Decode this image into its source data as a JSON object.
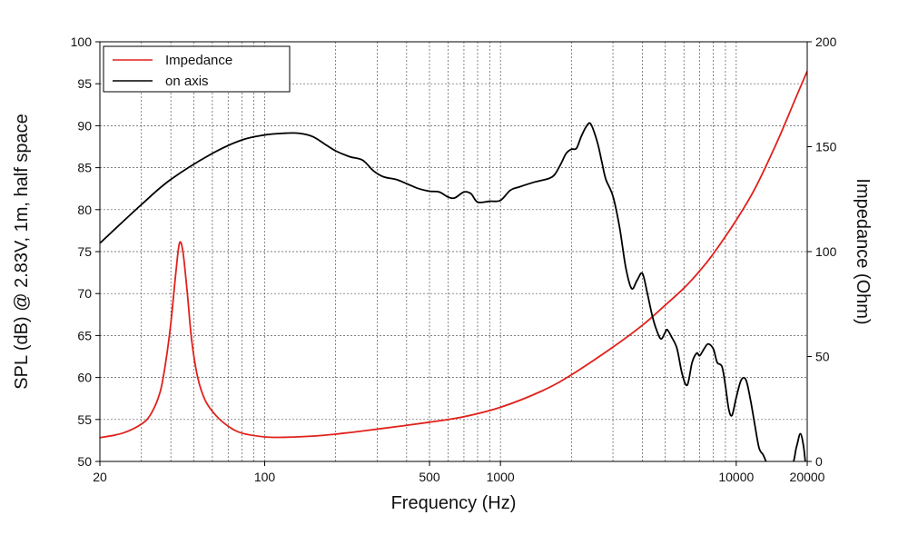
{
  "chart_data": {
    "type": "line",
    "xlabel": "Frequency (Hz)",
    "ylabel_left": "SPL (dB) @ 2.83V, 1m, half space",
    "ylabel_right": "Impedance (Ohm)",
    "xscale": "log",
    "xlim": [
      20,
      20000
    ],
    "ylim_left": [
      50,
      100
    ],
    "ylim_right": [
      0,
      200
    ],
    "x_ticks": [
      20,
      100,
      500,
      1000,
      10000,
      20000
    ],
    "x_tick_labels": [
      "20",
      "100",
      "500",
      "1000",
      "10000",
      "20000"
    ],
    "y_left_ticks": [
      50,
      55,
      60,
      65,
      70,
      75,
      80,
      85,
      90,
      95,
      100
    ],
    "y_left_tick_labels": [
      "50",
      "55",
      "60",
      "65",
      "70",
      "75",
      "80",
      "85",
      "90",
      "95",
      "100"
    ],
    "y_right_ticks": [
      0,
      50,
      100,
      150,
      200
    ],
    "y_right_tick_labels": [
      "0",
      "50",
      "100",
      "150",
      "200"
    ],
    "grid": true,
    "legend_position": "top-left",
    "series": [
      {
        "name": "Impedance",
        "axis": "right",
        "color": "#e0211b",
        "points": [
          [
            20,
            11.3
          ],
          [
            25,
            13.5
          ],
          [
            30,
            17.8
          ],
          [
            33,
            22.8
          ],
          [
            36,
            33
          ],
          [
            38,
            47
          ],
          [
            40,
            66
          ],
          [
            42,
            90
          ],
          [
            43.5,
            104
          ],
          [
            45,
            100
          ],
          [
            47,
            80
          ],
          [
            49,
            58
          ],
          [
            52,
            40
          ],
          [
            56,
            29
          ],
          [
            62,
            22
          ],
          [
            70,
            16.8
          ],
          [
            80,
            13.5
          ],
          [
            100,
            11.7
          ],
          [
            120,
            11.5
          ],
          [
            150,
            11.9
          ],
          [
            200,
            13
          ],
          [
            300,
            15.4
          ],
          [
            500,
            18.7
          ],
          [
            700,
            21.3
          ],
          [
            1000,
            25.8
          ],
          [
            1500,
            33.6
          ],
          [
            2000,
            41.3
          ],
          [
            3000,
            54.5
          ],
          [
            4000,
            64.9
          ],
          [
            5000,
            74.5
          ],
          [
            6000,
            82.6
          ],
          [
            7000,
            90.8
          ],
          [
            8000,
            99
          ],
          [
            10000,
            115
          ],
          [
            12000,
            130
          ],
          [
            15000,
            153
          ],
          [
            18000,
            174
          ],
          [
            20000,
            186
          ]
        ]
      },
      {
        "name": "on axis",
        "axis": "left",
        "color": "#000000",
        "points": [
          [
            20,
            76
          ],
          [
            30,
            80.6
          ],
          [
            40,
            83.6
          ],
          [
            60,
            86.7
          ],
          [
            80,
            88.3
          ],
          [
            100,
            88.9
          ],
          [
            120,
            89.1
          ],
          [
            140,
            89.1
          ],
          [
            160,
            88.7
          ],
          [
            180,
            87.8
          ],
          [
            200,
            87
          ],
          [
            230,
            86.3
          ],
          [
            260,
            85.9
          ],
          [
            290,
            84.6
          ],
          [
            320,
            83.9
          ],
          [
            360,
            83.6
          ],
          [
            400,
            83.1
          ],
          [
            450,
            82.5
          ],
          [
            500,
            82.2
          ],
          [
            550,
            82.1
          ],
          [
            600,
            81.5
          ],
          [
            640,
            81.4
          ],
          [
            700,
            82.1
          ],
          [
            750,
            81.9
          ],
          [
            800,
            80.9
          ],
          [
            900,
            81
          ],
          [
            1000,
            81.1
          ],
          [
            1100,
            82.3
          ],
          [
            1200,
            82.7
          ],
          [
            1400,
            83.3
          ],
          [
            1600,
            83.7
          ],
          [
            1700,
            84.2
          ],
          [
            1800,
            85.4
          ],
          [
            1900,
            86.7
          ],
          [
            2000,
            87.2
          ],
          [
            2100,
            87.3
          ],
          [
            2200,
            88.7
          ],
          [
            2300,
            89.8
          ],
          [
            2400,
            90.3
          ],
          [
            2500,
            89.2
          ],
          [
            2600,
            87.6
          ],
          [
            2700,
            85.5
          ],
          [
            2800,
            83.6
          ],
          [
            3000,
            81.6
          ],
          [
            3200,
            77.9
          ],
          [
            3400,
            73.1
          ],
          [
            3600,
            70.6
          ],
          [
            3800,
            71.6
          ],
          [
            4000,
            72.4
          ],
          [
            4200,
            70
          ],
          [
            4400,
            67.4
          ],
          [
            4600,
            65.6
          ],
          [
            4800,
            64.6
          ],
          [
            5000,
            65.4
          ],
          [
            5100,
            65.7
          ],
          [
            5300,
            64.9
          ],
          [
            5600,
            63.5
          ],
          [
            5900,
            60.4
          ],
          [
            6200,
            59.1
          ],
          [
            6500,
            61.8
          ],
          [
            6800,
            62.9
          ],
          [
            7000,
            62.6
          ],
          [
            7300,
            63.4
          ],
          [
            7600,
            64
          ],
          [
            8000,
            63.4
          ],
          [
            8300,
            61.8
          ],
          [
            8700,
            61.3
          ],
          [
            9000,
            59
          ],
          [
            9300,
            56.2
          ],
          [
            9600,
            55.5
          ],
          [
            10000,
            57.6
          ],
          [
            10500,
            59.7
          ],
          [
            11000,
            59.7
          ],
          [
            11500,
            57.3
          ],
          [
            12000,
            54.3
          ],
          [
            12500,
            51.6
          ],
          [
            13000,
            50.8
          ],
          [
            13500,
            49.8
          ],
          [
            14000,
            49.4
          ],
          [
            17000,
            49.4
          ],
          [
            18000,
            51.7
          ],
          [
            18700,
            53.3
          ],
          [
            19300,
            51.8
          ],
          [
            19700,
            49.6
          ],
          [
            20000,
            48.8
          ]
        ]
      }
    ]
  }
}
